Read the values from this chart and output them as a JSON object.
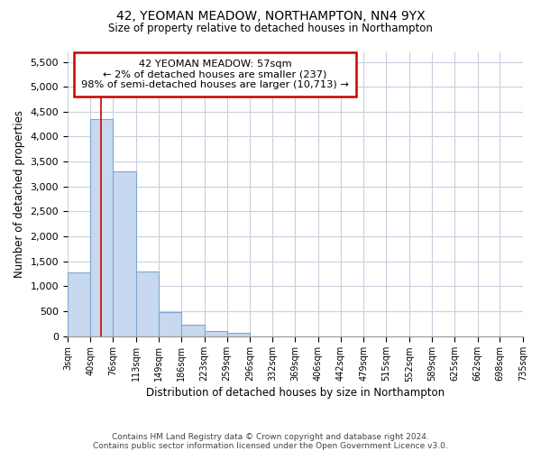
{
  "title_line1": "42, YEOMAN MEADOW, NORTHAMPTON, NN4 9YX",
  "title_line2": "Size of property relative to detached houses in Northampton",
  "xlabel": "Distribution of detached houses by size in Northampton",
  "ylabel": "Number of detached properties",
  "bar_color": "#c8d8ee",
  "bar_edge_color": "#7aaad0",
  "property_line_color": "#cc0000",
  "property_line_x": 57,
  "annotation_text": "42 YEOMAN MEADOW: 57sqm\n← 2% of detached houses are smaller (237)\n98% of semi-detached houses are larger (10,713) →",
  "annotation_box_facecolor": "white",
  "annotation_box_edgecolor": "#cc0000",
  "footnote_line1": "Contains HM Land Registry data © Crown copyright and database right 2024.",
  "footnote_line2": "Contains public sector information licensed under the Open Government Licence v3.0.",
  "bin_edges": [
    3,
    40,
    76,
    113,
    149,
    186,
    223,
    259,
    296,
    332,
    369,
    406,
    442,
    479,
    515,
    552,
    589,
    625,
    662,
    698,
    735
  ],
  "bin_counts": [
    1280,
    4350,
    3300,
    1300,
    480,
    230,
    100,
    60,
    0,
    0,
    0,
    0,
    0,
    0,
    0,
    0,
    0,
    0,
    0,
    0
  ],
  "ylim_max": 5700,
  "yticks": [
    0,
    500,
    1000,
    1500,
    2000,
    2500,
    3000,
    3500,
    4000,
    4500,
    5000,
    5500
  ],
  "fig_facecolor": "#ffffff",
  "ax_facecolor": "#ffffff",
  "grid_color": "#c8d0dc"
}
